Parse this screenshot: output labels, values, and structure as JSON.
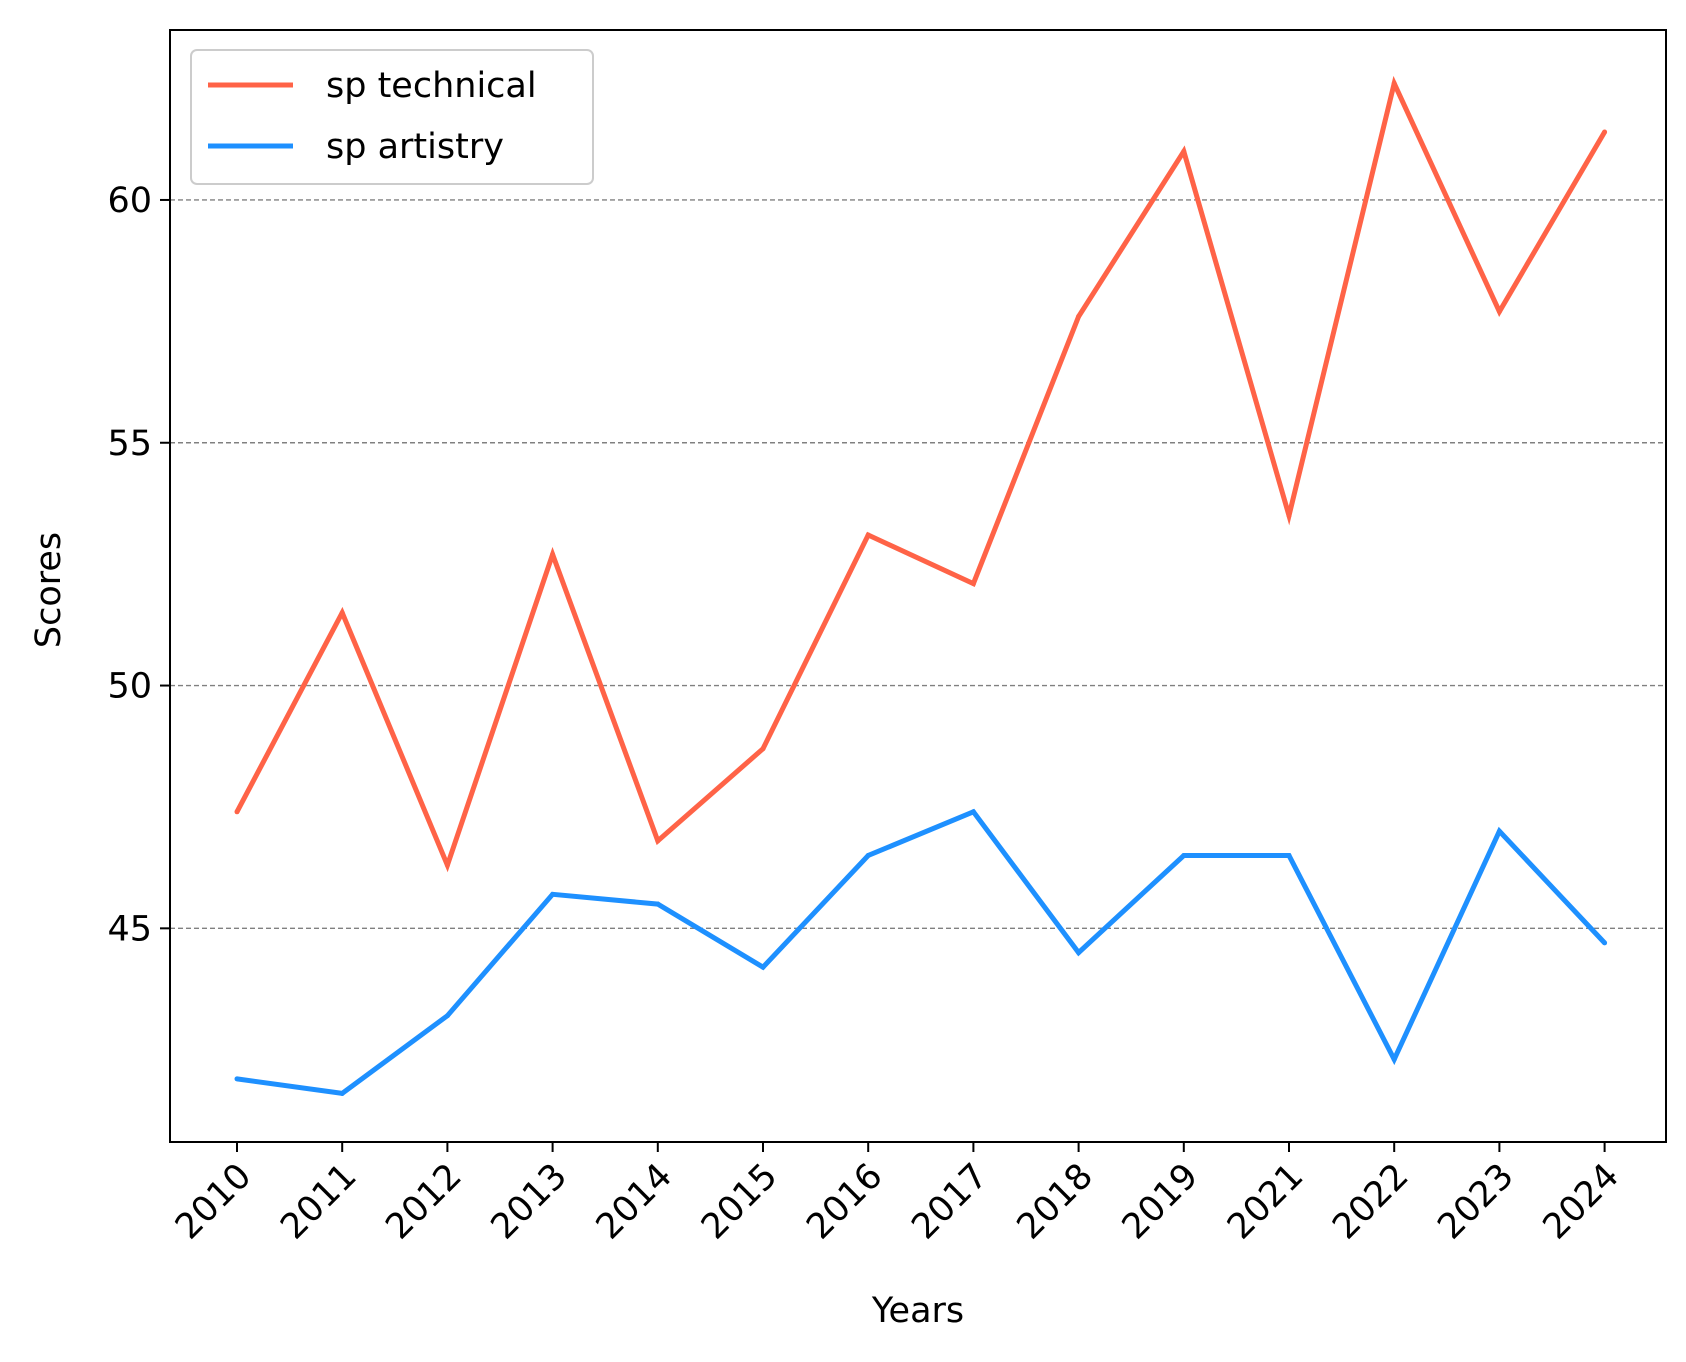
{
  "chart_data": {
    "type": "line",
    "xlabel": "Years",
    "ylabel": "Scores",
    "categories": [
      "2010",
      "2011",
      "2012",
      "2013",
      "2014",
      "2015",
      "2016",
      "2017",
      "2018",
      "2019",
      "2021",
      "2022",
      "2023",
      "2024"
    ],
    "ylim": [
      40.6,
      63.5
    ],
    "yticks": [
      45,
      50,
      55,
      60
    ],
    "grid": "horizontal, dashed",
    "legend_position": "top-left",
    "series": [
      {
        "name": "sp technical",
        "color": "#FF6347",
        "values": [
          47.4,
          51.5,
          46.3,
          52.7,
          46.8,
          48.7,
          53.1,
          52.1,
          57.6,
          61.0,
          53.5,
          62.4,
          57.7,
          61.4
        ]
      },
      {
        "name": "sp artistry",
        "color": "#1E90FF",
        "values": [
          41.9,
          41.6,
          43.2,
          45.7,
          45.5,
          44.2,
          46.5,
          47.4,
          44.5,
          46.5,
          46.5,
          42.3,
          47.0,
          44.7
        ]
      }
    ]
  }
}
